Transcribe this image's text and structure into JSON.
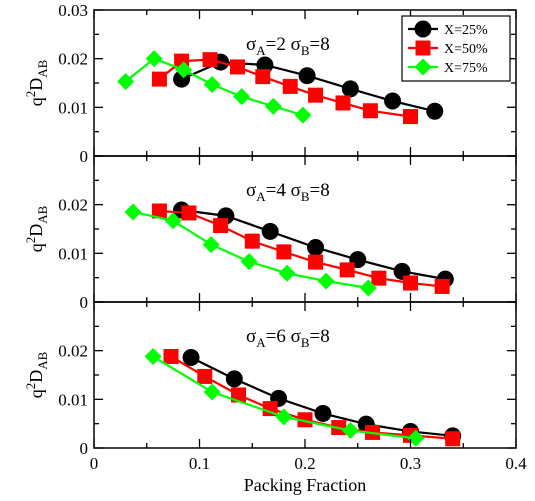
{
  "chart_data": {
    "type": "line",
    "xlabel": "Packing Fraction",
    "ylabel": "q²D_AB",
    "xlim": [
      0,
      0.4
    ],
    "x_ticks": [
      "0",
      "0.1",
      "0.2",
      "0.3",
      "0.4"
    ],
    "legend": {
      "placement": "top-right",
      "entries": [
        {
          "label": "X=25%",
          "color": "#000000",
          "marker": "circle"
        },
        {
          "label": "X=50%",
          "color": "#ff0000",
          "marker": "square"
        },
        {
          "label": "X=75%",
          "color": "#00ff00",
          "marker": "diamond"
        }
      ]
    },
    "panels": [
      {
        "label": {
          "sigma_a": "2",
          "sigma_b": "8"
        },
        "ylim": [
          0,
          0.03
        ],
        "y_ticks": [
          "0",
          "0.01",
          "0.02",
          "0.03"
        ],
        "series": [
          {
            "name": "X=25%",
            "x": [
              0.083,
              0.12,
              0.162,
              0.202,
              0.243,
              0.283,
              0.323
            ],
            "y": [
              0.0158,
              0.0193,
              0.0187,
              0.0165,
              0.0138,
              0.0113,
              0.0092
            ]
          },
          {
            "name": "X=50%",
            "x": [
              0.062,
              0.083,
              0.11,
              0.136,
              0.16,
              0.186,
              0.21,
              0.236,
              0.262,
              0.3
            ],
            "y": [
              0.0158,
              0.0195,
              0.0198,
              0.0183,
              0.0163,
              0.0143,
              0.0125,
              0.0109,
              0.0093,
              0.0081
            ]
          },
          {
            "name": "X=75%",
            "x": [
              0.03,
              0.057,
              0.085,
              0.112,
              0.14,
              0.17,
              0.198
            ],
            "y": [
              0.0153,
              0.02,
              0.0177,
              0.0147,
              0.0122,
              0.0102,
              0.0084
            ]
          }
        ]
      },
      {
        "label": {
          "sigma_a": "4",
          "sigma_b": "8"
        },
        "ylim": [
          0,
          0.03
        ],
        "y_ticks": [
          "0",
          "0.01",
          "0.02"
        ],
        "series": [
          {
            "name": "X=25%",
            "x": [
              0.083,
              0.125,
              0.167,
              0.21,
              0.25,
              0.292,
              0.333
            ],
            "y": [
              0.0189,
              0.0177,
              0.0145,
              0.0112,
              0.0087,
              0.0063,
              0.0047
            ]
          },
          {
            "name": "X=50%",
            "x": [
              0.062,
              0.09,
              0.12,
              0.15,
              0.18,
              0.21,
              0.24,
              0.27,
              0.3,
              0.33
            ],
            "y": [
              0.0187,
              0.0183,
              0.0157,
              0.0125,
              0.0103,
              0.0082,
              0.0066,
              0.0049,
              0.0039,
              0.0032
            ]
          },
          {
            "name": "X=75%",
            "x": [
              0.037,
              0.075,
              0.111,
              0.147,
              0.183,
              0.22,
              0.26
            ],
            "y": [
              0.0185,
              0.0167,
              0.0118,
              0.0083,
              0.0059,
              0.0043,
              0.0029
            ]
          }
        ]
      },
      {
        "label": {
          "sigma_a": "6",
          "sigma_b": "8"
        },
        "ylim": [
          0,
          0.03
        ],
        "y_ticks": [
          "0",
          "0.01",
          "0.02"
        ],
        "series": [
          {
            "name": "X=25%",
            "x": [
              0.092,
              0.133,
              0.175,
              0.217,
              0.258,
              0.3,
              0.34
            ],
            "y": [
              0.0186,
              0.0142,
              0.0102,
              0.0071,
              0.0049,
              0.0034,
              0.0025
            ]
          },
          {
            "name": "X=50%",
            "x": [
              0.073,
              0.105,
              0.137,
              0.167,
              0.2,
              0.232,
              0.264,
              0.3,
              0.34
            ],
            "y": [
              0.0188,
              0.0147,
              0.0109,
              0.0081,
              0.0058,
              0.0042,
              0.0032,
              0.0026,
              0.0019
            ]
          },
          {
            "name": "X=75%",
            "x": [
              0.056,
              0.112,
              0.18,
              0.243,
              0.305
            ],
            "y": [
              0.0188,
              0.0115,
              0.0064,
              0.0036,
              0.002
            ]
          }
        ]
      }
    ]
  }
}
